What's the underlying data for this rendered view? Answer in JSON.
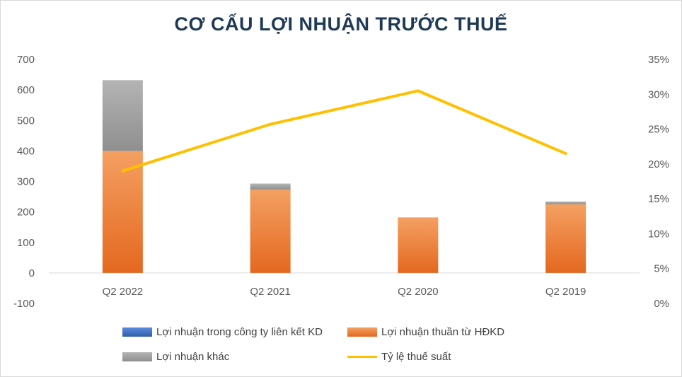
{
  "chart_data": {
    "type": "bar",
    "title": "CƠ CẤU LỢI NHUẬN TRƯỚC THUẾ",
    "categories": [
      "Q2 2022",
      "Q2 2021",
      "Q2 2020",
      "Q2 2019"
    ],
    "stacked": true,
    "series": [
      {
        "name": "Lợi nhuận trong công ty liên kết KD",
        "type": "bar",
        "axis": "left",
        "values": [
          0,
          0,
          0,
          0
        ],
        "color": "#4472c4"
      },
      {
        "name": "Lợi nhuận thuần từ HĐKD",
        "type": "bar",
        "axis": "left",
        "values": [
          400,
          273,
          182,
          225
        ],
        "color": "#ed7d31"
      },
      {
        "name": "Lợi nhuận khác",
        "type": "bar",
        "axis": "left",
        "values": [
          232,
          20,
          0,
          9
        ],
        "color": "#a5a5a5"
      },
      {
        "name": "Tỷ lệ thuế suất",
        "type": "line",
        "axis": "right",
        "values": [
          0.19,
          0.257,
          0.305,
          0.215
        ],
        "color": "#ffc000"
      }
    ],
    "y_left": {
      "min": -100,
      "max": 700,
      "ticks": [
        "700",
        "600",
        "500",
        "400",
        "300",
        "200",
        "100",
        "0",
        "-100"
      ]
    },
    "y_right": {
      "min": 0,
      "max": 0.35,
      "ticks": [
        "35%",
        "30%",
        "25%",
        "20%",
        "15%",
        "10%",
        "5%",
        "0%"
      ]
    },
    "grid": false,
    "legend_position": "bottom"
  }
}
